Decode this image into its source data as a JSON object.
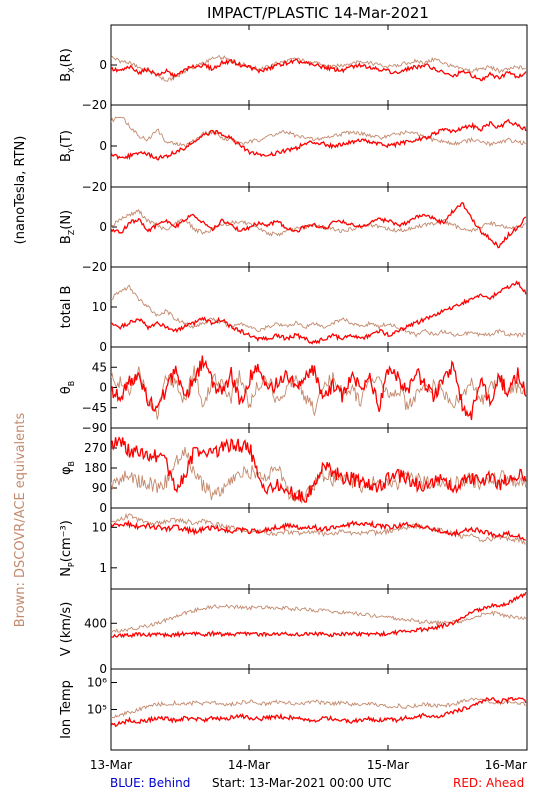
{
  "chart_data": {
    "type": "line",
    "title": "IMPACT/PLASTIC   14-Mar-2021",
    "side_label": "(nanoTesla, RTN)",
    "side_label_brown": "Brown: DSCOVR/ACE equivalents",
    "x_ticks": [
      "13-Mar",
      "14-Mar",
      "15-Mar",
      "16-Mar"
    ],
    "footer": {
      "left": "BLUE: Behind",
      "center": "Start: 13-Mar-2021 00:00 UTC",
      "right": "RED: Ahead"
    },
    "colors": {
      "ahead": "#ff0000",
      "equivalent": "#c48a6e",
      "behind": "#0000cc"
    },
    "panels": [
      {
        "ylabel": "B",
        "ysub": "X",
        "yunit": "(R)",
        "ylim": [
          -20,
          20
        ],
        "ticks": [
          "0",
          "−20"
        ],
        "ahead": [
          -2,
          -3,
          -1,
          -4,
          -2,
          -5,
          -3,
          -6,
          -2,
          -1,
          0,
          -2,
          1,
          2,
          0,
          -1,
          -3,
          -2,
          0,
          1,
          2,
          1,
          0,
          -1,
          -2,
          -3,
          -1,
          0,
          -1,
          -2,
          -3,
          -4,
          -2,
          -1,
          0,
          -2,
          -4,
          -6,
          -3,
          -5,
          -8,
          -4,
          -7,
          -3,
          -6,
          -4
        ],
        "equiv": [
          4,
          2,
          1,
          -1,
          -3,
          -5,
          -8,
          -6,
          -3,
          -1,
          1,
          3,
          4,
          2,
          1,
          -1,
          -2,
          -1,
          1,
          2,
          3,
          2,
          1,
          0,
          -1,
          0,
          1,
          2,
          1,
          0,
          -1,
          0,
          1,
          2,
          1,
          3,
          1,
          -1,
          -2,
          -3,
          -2,
          -1,
          -3,
          -2,
          -1,
          -2
        ]
      },
      {
        "ylabel": "B",
        "ysub": "Y",
        "yunit": "(T)",
        "ylim": [
          -20,
          20
        ],
        "ticks": [
          "0",
          "−20"
        ],
        "ahead": [
          -4,
          -6,
          -5,
          -3,
          -4,
          -6,
          -5,
          -3,
          -1,
          2,
          5,
          7,
          6,
          4,
          0,
          -3,
          -4,
          -5,
          -3,
          -2,
          -1,
          1,
          2,
          1,
          0,
          1,
          2,
          3,
          2,
          1,
          0,
          1,
          2,
          3,
          4,
          6,
          8,
          7,
          9,
          10,
          8,
          11,
          9,
          12,
          10,
          8
        ],
        "equiv": [
          12,
          15,
          10,
          5,
          3,
          8,
          2,
          1,
          0,
          3,
          6,
          7,
          4,
          3,
          1,
          2,
          3,
          5,
          6,
          7,
          5,
          4,
          3,
          4,
          5,
          6,
          7,
          6,
          5,
          4,
          5,
          6,
          7,
          6,
          4,
          3,
          2,
          1,
          2,
          3,
          2,
          1,
          2,
          3,
          2,
          1
        ]
      },
      {
        "ylabel": "B",
        "ysub": "Z",
        "yunit": "(N)",
        "ylim": [
          -20,
          20
        ],
        "ticks": [
          "0",
          "−20"
        ],
        "ahead": [
          -1,
          -3,
          2,
          4,
          -2,
          1,
          3,
          0,
          4,
          6,
          2,
          -1,
          3,
          1,
          -2,
          0,
          2,
          1,
          3,
          -1,
          -2,
          0,
          1,
          -1,
          2,
          3,
          1,
          0,
          2,
          4,
          3,
          1,
          2,
          5,
          6,
          4,
          2,
          8,
          12,
          4,
          -2,
          -6,
          -10,
          -4,
          0,
          5
        ],
        "equiv": [
          0,
          4,
          6,
          8,
          3,
          1,
          -2,
          2,
          4,
          -1,
          -3,
          -1,
          1,
          2,
          3,
          1,
          -1,
          -3,
          -4,
          -2,
          -1,
          0,
          1,
          0,
          -1,
          -2,
          -1,
          0,
          1,
          0,
          -1,
          -2,
          -1,
          0,
          1,
          2,
          3,
          1,
          -1,
          -2,
          0,
          2,
          1,
          -1,
          0,
          1
        ]
      },
      {
        "ylabel": "total B",
        "ysub": "",
        "yunit": "",
        "ylim": [
          0,
          20
        ],
        "ticks": [
          "10",
          "0"
        ],
        "ahead": [
          6,
          5,
          6,
          7,
          5,
          6,
          5,
          4,
          5,
          6,
          7,
          6,
          7,
          5,
          4,
          3,
          2,
          2,
          3,
          2,
          3,
          2,
          1,
          2,
          3,
          2,
          3,
          2,
          3,
          4,
          3,
          4,
          5,
          6,
          7,
          8,
          9,
          10,
          11,
          12,
          13,
          12,
          14,
          15,
          16,
          13
        ],
        "equiv": [
          12,
          14,
          15,
          12,
          10,
          8,
          9,
          7,
          6,
          5,
          6,
          7,
          6,
          5,
          6,
          5,
          4,
          5,
          6,
          5,
          6,
          5,
          6,
          5,
          6,
          7,
          6,
          5,
          6,
          5,
          6,
          5,
          4,
          3,
          4,
          3,
          4,
          3,
          3,
          4,
          3,
          3,
          4,
          3,
          3,
          3
        ]
      },
      {
        "ylabel": "θ",
        "ysub": "B",
        "yunit": "",
        "ylim": [
          -90,
          90
        ],
        "ticks": [
          "45",
          "0",
          "−45",
          "−90"
        ],
        "ahead": [
          -10,
          -20,
          10,
          30,
          -30,
          -50,
          0,
          40,
          -20,
          20,
          60,
          10,
          -10,
          30,
          -40,
          20,
          50,
          -10,
          10,
          30,
          0,
          20,
          40,
          -30,
          10,
          -20,
          30,
          0,
          20,
          -40,
          40,
          20,
          -10,
          30,
          10,
          -20,
          20,
          50,
          -40,
          -60,
          10,
          -30,
          20,
          -10,
          30,
          -20
        ],
        "equiv": [
          20,
          10,
          -10,
          40,
          -20,
          -60,
          30,
          10,
          -30,
          40,
          -50,
          20,
          10,
          -20,
          30,
          -40,
          10,
          20,
          -30,
          0,
          30,
          -20,
          -50,
          10,
          20,
          -10,
          0,
          -30,
          20,
          10,
          -20,
          0,
          -40,
          -20,
          10,
          0,
          -10,
          -40,
          -20,
          10,
          -30,
          0,
          20,
          -10,
          0,
          -20
        ]
      },
      {
        "ylabel": "φ",
        "ysub": "B",
        "yunit": "",
        "ylim": [
          0,
          360
        ],
        "ticks": [
          "270",
          "180",
          "90",
          "0"
        ],
        "ahead": [
          280,
          300,
          260,
          250,
          240,
          230,
          200,
          100,
          150,
          250,
          260,
          240,
          270,
          280,
          280,
          275,
          120,
          90,
          100,
          80,
          60,
          40,
          100,
          200,
          160,
          140,
          130,
          120,
          110,
          100,
          130,
          150,
          130,
          110,
          100,
          120,
          140,
          80,
          120,
          130,
          120,
          140,
          110,
          130,
          150,
          140
        ],
        "equiv": [
          100,
          130,
          150,
          120,
          110,
          100,
          120,
          200,
          260,
          150,
          100,
          60,
          80,
          120,
          150,
          160,
          170,
          130,
          200,
          80,
          50,
          60,
          100,
          150,
          130,
          140,
          120,
          100,
          110,
          120,
          100,
          110,
          130,
          140,
          110,
          120,
          100,
          110,
          120,
          130,
          100,
          120,
          140,
          130,
          110,
          120
        ]
      },
      {
        "ylabel": "N",
        "ysub": "P",
        "yunit": "(cm⁻³)",
        "ylim": [
          0.3,
          30
        ],
        "log": true,
        "ticks": [
          "10",
          "1"
        ],
        "ahead": [
          12,
          11,
          12,
          10,
          11,
          10,
          9,
          10,
          9,
          8,
          9,
          10,
          9,
          8,
          9,
          8,
          8,
          9,
          10,
          11,
          10,
          9,
          10,
          9,
          10,
          11,
          12,
          13,
          12,
          11,
          10,
          11,
          12,
          11,
          10,
          9,
          8,
          7,
          8,
          9,
          8,
          7,
          6,
          7,
          6,
          5
        ],
        "equiv": [
          12,
          16,
          20,
          15,
          12,
          13,
          14,
          15,
          14,
          13,
          14,
          12,
          11,
          10,
          9,
          8,
          8,
          7,
          7,
          8,
          7,
          7,
          8,
          7,
          7,
          8,
          7,
          7,
          8,
          7,
          8,
          9,
          10,
          11,
          10,
          9,
          8,
          7,
          6,
          6,
          5,
          5,
          6,
          5,
          5,
          4
        ]
      },
      {
        "ylabel": "V",
        "ysub": "",
        "yunit": "(km/s)",
        "ylim": [
          0,
          700
        ],
        "ticks": [
          "400",
          "0"
        ],
        "ahead": [
          290,
          300,
          295,
          300,
          305,
          300,
          295,
          300,
          310,
          305,
          300,
          310,
          305,
          300,
          310,
          305,
          300,
          305,
          310,
          305,
          300,
          305,
          310,
          305,
          300,
          305,
          310,
          305,
          300,
          305,
          310,
          320,
          330,
          340,
          350,
          360,
          380,
          400,
          450,
          500,
          520,
          550,
          560,
          580,
          620,
          660
        ],
        "equiv": [
          330,
          340,
          350,
          360,
          380,
          400,
          430,
          460,
          490,
          510,
          530,
          545,
          550,
          545,
          540,
          535,
          540,
          545,
          535,
          530,
          525,
          520,
          515,
          510,
          500,
          495,
          490,
          480,
          470,
          460,
          450,
          440,
          430,
          420,
          410,
          405,
          400,
          410,
          420,
          440,
          470,
          490,
          480,
          460,
          450,
          440
        ]
      },
      {
        "ylabel": "Ion Temp",
        "ysub": "",
        "yunit": "",
        "ylim": [
          3.5,
          6.5
        ],
        "ticks": [
          "10⁶",
          "10⁵"
        ],
        "ahead": [
          4.4,
          4.5,
          4.6,
          4.55,
          4.6,
          4.7,
          4.65,
          4.6,
          4.7,
          4.65,
          4.6,
          4.7,
          4.65,
          4.7,
          4.75,
          4.7,
          4.65,
          4.7,
          4.75,
          4.7,
          4.7,
          4.65,
          4.6,
          4.7,
          4.65,
          4.6,
          4.55,
          4.6,
          4.65,
          4.6,
          4.65,
          4.6,
          4.7,
          4.75,
          4.8,
          4.75,
          4.8,
          4.9,
          5.0,
          5.1,
          5.3,
          5.4,
          5.3,
          5.35,
          5.4,
          5.3
        ],
        "equiv": [
          4.7,
          4.8,
          4.9,
          5.0,
          5.1,
          5.2,
          5.2,
          5.25,
          5.2,
          5.25,
          5.2,
          5.25,
          5.2,
          5.2,
          5.25,
          5.3,
          5.25,
          5.2,
          5.3,
          5.25,
          5.2,
          5.25,
          5.3,
          5.25,
          5.2,
          5.25,
          5.2,
          5.15,
          5.2,
          5.15,
          5.1,
          5.15,
          5.1,
          5.15,
          5.2,
          5.15,
          5.1,
          5.2,
          5.3,
          5.4,
          5.35,
          5.3,
          5.25,
          5.3,
          5.25,
          5.2
        ]
      }
    ]
  }
}
